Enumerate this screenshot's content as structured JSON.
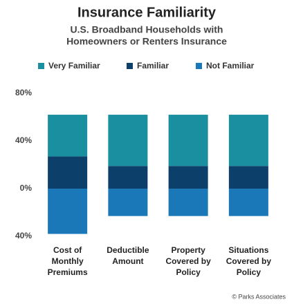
{
  "chart_data": {
    "type": "diverging_stacked_bar",
    "title": "Insurance Familiarity",
    "subtitle": [
      "U.S. Broadband Households with",
      "Homeowners or Renters Insurance"
    ],
    "categories": [
      [
        "Cost of",
        "Monthly",
        "Premiums"
      ],
      [
        "Deductible",
        "Amount"
      ],
      [
        "Property",
        "Covered by",
        "Policy"
      ],
      [
        "Situations",
        "Covered by",
        "Policy"
      ]
    ],
    "series": [
      {
        "name": "Very Familiar",
        "color": "#1a8fa0",
        "values": [
          35,
          43,
          43,
          43
        ]
      },
      {
        "name": "Familiar",
        "color": "#0d3f6b",
        "values": [
          27,
          19,
          19,
          19
        ]
      },
      {
        "name": "Not Familiar",
        "color": "#1b78b8",
        "values": [
          -38,
          -23,
          -23,
          -23
        ]
      }
    ],
    "ylim": [
      -40,
      80
    ],
    "yticks": [
      {
        "value": 80,
        "label": "80%"
      },
      {
        "value": 40,
        "label": "40%"
      },
      {
        "value": 0,
        "label": "0%"
      },
      {
        "value": -40,
        "label": "40%"
      }
    ],
    "grid": false,
    "source": "© Parks Associates"
  }
}
